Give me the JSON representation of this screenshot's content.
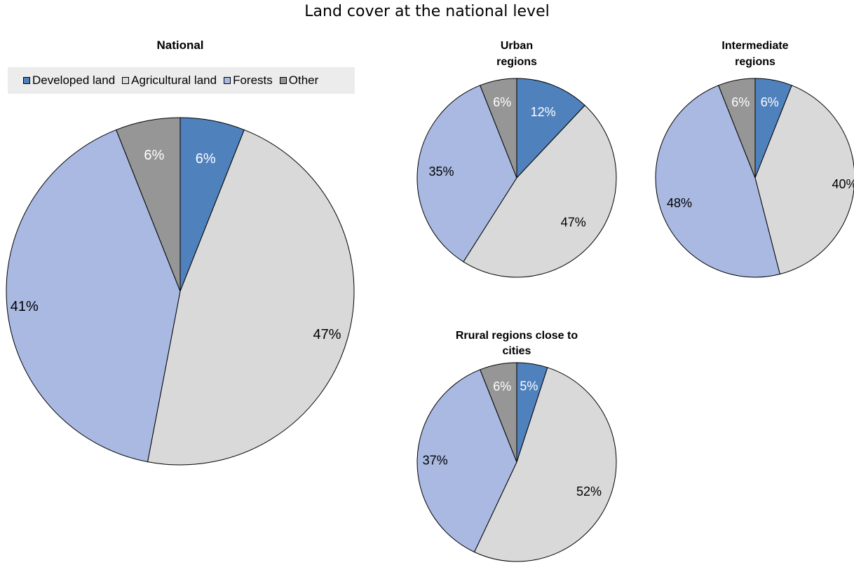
{
  "title": "Land cover at the national level",
  "legend_placement": "top-left",
  "legend": [
    {
      "label": "Developed land",
      "color": "#4f81bd"
    },
    {
      "label": "Agricultural land",
      "color": "#d9d9d9"
    },
    {
      "label": "Forests",
      "color": "#a9b9e2"
    },
    {
      "label": "Other",
      "color": "#969696"
    }
  ],
  "chart_data": [
    {
      "type": "pie",
      "title": "National",
      "categories": [
        "Developed land",
        "Agricultural land",
        "Forests",
        "Other"
      ],
      "values": [
        6,
        47,
        41,
        6
      ],
      "labels": [
        "6%",
        "47%",
        "41%",
        "6%"
      ]
    },
    {
      "type": "pie",
      "title": "Urban regions",
      "categories": [
        "Developed land",
        "Agricultural land",
        "Forests",
        "Other"
      ],
      "values": [
        12,
        47,
        35,
        6
      ],
      "labels": [
        "12%",
        "47%",
        "35%",
        "6%"
      ]
    },
    {
      "type": "pie",
      "title": "Intermediate regions",
      "categories": [
        "Developed land",
        "Agricultural land",
        "Forests",
        "Other"
      ],
      "values": [
        6,
        40,
        48,
        6
      ],
      "labels": [
        "6%",
        "40%",
        "48%",
        "6%"
      ]
    },
    {
      "type": "pie",
      "title": "Rrural regions close to cities",
      "categories": [
        "Developed land",
        "Agricultural land",
        "Forests",
        "Other"
      ],
      "values": [
        5,
        52,
        37,
        6
      ],
      "labels": [
        "5%",
        "52%",
        "37%",
        "6%"
      ]
    }
  ]
}
